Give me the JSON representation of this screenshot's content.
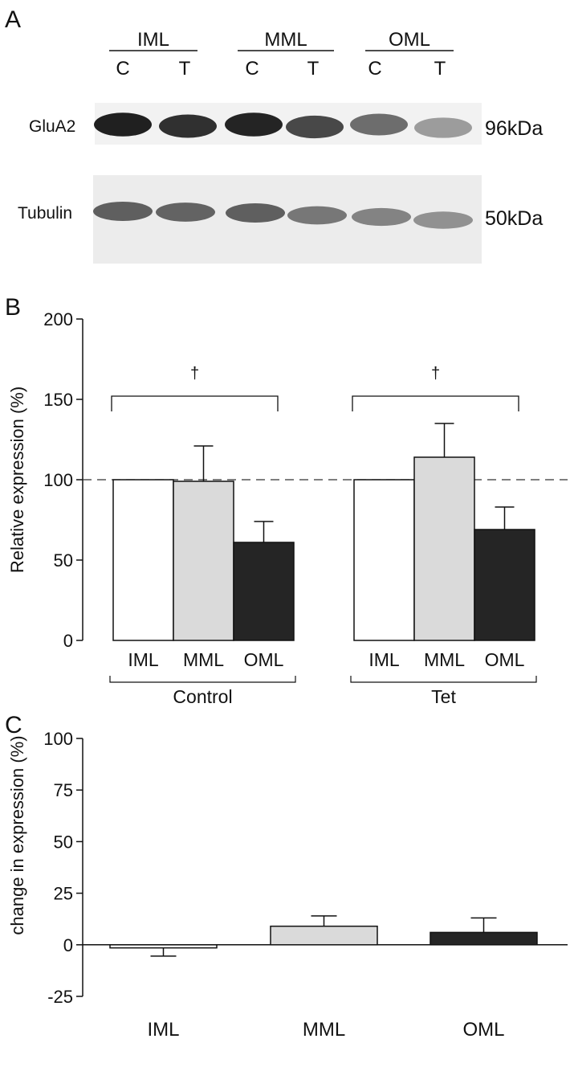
{
  "panel_a": {
    "label": "A",
    "groups": [
      "IML",
      "MML",
      "OML"
    ],
    "lanes": [
      "C",
      "T",
      "C",
      "T",
      "C",
      "T"
    ],
    "blots": [
      {
        "name": "GluA2",
        "size": "96kDa",
        "intensity": [
          0.95,
          0.88,
          0.93,
          0.78,
          0.62,
          0.42
        ]
      },
      {
        "name": "Tubulin",
        "size": "50kDa",
        "intensity": [
          0.8,
          0.78,
          0.8,
          0.68,
          0.62,
          0.55
        ]
      }
    ]
  },
  "chart_data": [
    {
      "panel": "B",
      "type": "bar",
      "ylabel": "Relative expression (%)",
      "ylim": [
        0,
        200
      ],
      "yticks": [
        0,
        50,
        100,
        150,
        200
      ],
      "reference_line": 100,
      "categories": [
        "IML",
        "MML",
        "OML"
      ],
      "groups": [
        {
          "name": "Control",
          "values": [
            100,
            99,
            61
          ],
          "errors": [
            0,
            22,
            13
          ]
        },
        {
          "name": "Tet",
          "values": [
            100,
            114,
            69
          ],
          "errors": [
            0,
            21,
            14
          ]
        }
      ],
      "significance": [
        {
          "group": "Control",
          "symbol": "†"
        },
        {
          "group": "Tet",
          "symbol": "†"
        }
      ],
      "colors": {
        "IML": "#ffffff",
        "MML": "#dadada",
        "OML": "#252525"
      }
    },
    {
      "panel": "C",
      "type": "bar",
      "ylabel": "change in expression (%)",
      "ylim": [
        -25,
        100
      ],
      "yticks": [
        -25,
        0,
        25,
        50,
        75,
        100
      ],
      "categories": [
        "IML",
        "MML",
        "OML"
      ],
      "values": [
        -1.5,
        9,
        6
      ],
      "errors": [
        4,
        5,
        7
      ],
      "colors": {
        "IML": "#ffffff",
        "MML": "#dadada",
        "OML": "#252525"
      }
    }
  ]
}
